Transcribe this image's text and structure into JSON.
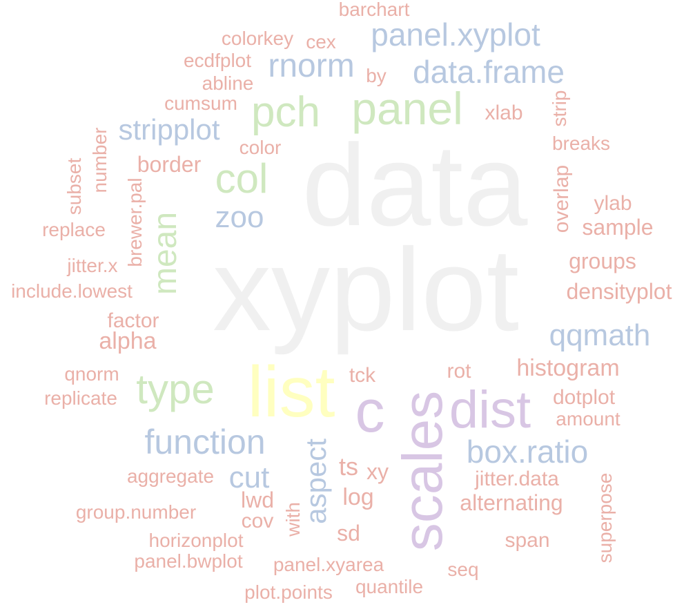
{
  "palette": {
    "gray": "#f0f0f0",
    "yellow": "#ffffc0",
    "purple": "#d8c6e4",
    "green": "#cfe8bf",
    "blue": "#b7c8e0",
    "salmon": "#eab0a8"
  },
  "words": [
    {
      "text": "data",
      "color": "gray"
    },
    {
      "text": "xyplot",
      "color": "gray"
    },
    {
      "text": "list",
      "color": "yellow"
    },
    {
      "text": "scales",
      "color": "purple"
    },
    {
      "text": "c",
      "color": "purple"
    },
    {
      "text": "dist",
      "color": "purple"
    },
    {
      "text": "panel",
      "color": "green"
    },
    {
      "text": "pch",
      "color": "green"
    },
    {
      "text": "col",
      "color": "green"
    },
    {
      "text": "type",
      "color": "green"
    },
    {
      "text": "mean",
      "color": "green"
    },
    {
      "text": "panel.xyplot",
      "color": "blue"
    },
    {
      "text": "data.frame",
      "color": "blue"
    },
    {
      "text": "rnorm",
      "color": "blue"
    },
    {
      "text": "stripplot",
      "color": "blue"
    },
    {
      "text": "zoo",
      "color": "blue"
    },
    {
      "text": "function",
      "color": "blue"
    },
    {
      "text": "cut",
      "color": "blue"
    },
    {
      "text": "aspect",
      "color": "blue"
    },
    {
      "text": "box.ratio",
      "color": "blue"
    },
    {
      "text": "qqmath",
      "color": "blue"
    },
    {
      "text": "barchart",
      "color": "salmon"
    },
    {
      "text": "colorkey",
      "color": "salmon"
    },
    {
      "text": "cex",
      "color": "salmon"
    },
    {
      "text": "ecdfplot",
      "color": "salmon"
    },
    {
      "text": "by",
      "color": "salmon"
    },
    {
      "text": "abline",
      "color": "salmon"
    },
    {
      "text": "cumsum",
      "color": "salmon"
    },
    {
      "text": "xlab",
      "color": "salmon"
    },
    {
      "text": "strip",
      "color": "salmon"
    },
    {
      "text": "color",
      "color": "salmon"
    },
    {
      "text": "breaks",
      "color": "salmon"
    },
    {
      "text": "border",
      "color": "salmon"
    },
    {
      "text": "number",
      "color": "salmon"
    },
    {
      "text": "subset",
      "color": "salmon"
    },
    {
      "text": "brewer.pal",
      "color": "salmon"
    },
    {
      "text": "replace",
      "color": "salmon"
    },
    {
      "text": "overlap",
      "color": "salmon"
    },
    {
      "text": "ylab",
      "color": "salmon"
    },
    {
      "text": "sample",
      "color": "salmon"
    },
    {
      "text": "jitter.x",
      "color": "salmon"
    },
    {
      "text": "groups",
      "color": "salmon"
    },
    {
      "text": "include.lowest",
      "color": "salmon"
    },
    {
      "text": "densityplot",
      "color": "salmon"
    },
    {
      "text": "factor",
      "color": "salmon"
    },
    {
      "text": "alpha",
      "color": "salmon"
    },
    {
      "text": "histogram",
      "color": "salmon"
    },
    {
      "text": "tck",
      "color": "salmon"
    },
    {
      "text": "rot",
      "color": "salmon"
    },
    {
      "text": "qnorm",
      "color": "salmon"
    },
    {
      "text": "replicate",
      "color": "salmon"
    },
    {
      "text": "dotplot",
      "color": "salmon"
    },
    {
      "text": "amount",
      "color": "salmon"
    },
    {
      "text": "ts",
      "color": "salmon"
    },
    {
      "text": "xy",
      "color": "salmon"
    },
    {
      "text": "aggregate",
      "color": "salmon"
    },
    {
      "text": "jitter.data",
      "color": "salmon"
    },
    {
      "text": "superpose",
      "color": "salmon"
    },
    {
      "text": "log",
      "color": "salmon"
    },
    {
      "text": "lwd",
      "color": "salmon"
    },
    {
      "text": "alternating",
      "color": "salmon"
    },
    {
      "text": "group.number",
      "color": "salmon"
    },
    {
      "text": "cov",
      "color": "salmon"
    },
    {
      "text": "with",
      "color": "salmon"
    },
    {
      "text": "sd",
      "color": "salmon"
    },
    {
      "text": "horizonplot",
      "color": "salmon"
    },
    {
      "text": "span",
      "color": "salmon"
    },
    {
      "text": "panel.bwplot",
      "color": "salmon"
    },
    {
      "text": "panel.xyarea",
      "color": "salmon"
    },
    {
      "text": "seq",
      "color": "salmon"
    },
    {
      "text": "quantile",
      "color": "salmon"
    },
    {
      "text": "plot.points",
      "color": "salmon"
    }
  ]
}
